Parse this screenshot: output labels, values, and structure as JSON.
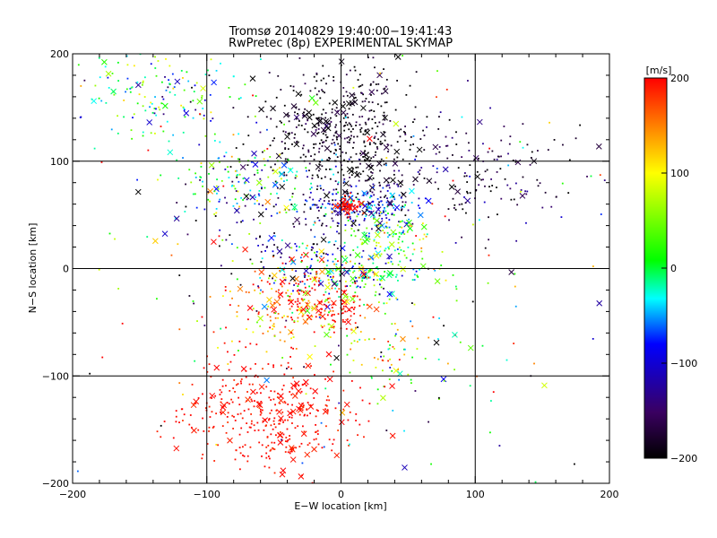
{
  "chart_data": {
    "type": "scatter",
    "title": "Tromsø 20140829 19:40:00−19:41:43",
    "subtitle": "RwPretec (8p) EXPERIMENTAL SKYMAP",
    "xlabel": "E−W location [km]",
    "ylabel": "N−S location [km]",
    "xlim": [
      -200,
      200
    ],
    "ylim": [
      -200,
      200
    ],
    "x_ticks": [
      "−200",
      "−100",
      "0",
      "100",
      "200"
    ],
    "y_ticks": [
      "−200",
      "−100",
      "0",
      "100",
      "200"
    ],
    "gridlines_x": [
      -100,
      0,
      100
    ],
    "gridlines_y": [
      -100,
      0,
      100
    ],
    "grid": true,
    "colorbar": {
      "label": "[m/s]",
      "range": [
        -200,
        200
      ],
      "ticks": [
        "200",
        "100",
        "0",
        "−100",
        "−200"
      ],
      "colors_low_to_high": [
        "#000000",
        "#3a0060",
        "#0000ff",
        "#00ffff",
        "#00ff00",
        "#ffff00",
        "#ff0000"
      ]
    },
    "markers": {
      "small": "dot",
      "large": "x"
    },
    "clusters": [
      {
        "x": 0,
        "y": 125,
        "sx": 30,
        "sy": 35,
        "n": 520,
        "v": -190,
        "vs": 20
      },
      {
        "x": 105,
        "y": 85,
        "sx": 38,
        "sy": 25,
        "n": 150,
        "v": -175,
        "vs": 30
      },
      {
        "x": -135,
        "y": 165,
        "sx": 30,
        "sy": 22,
        "n": 160,
        "v": -5,
        "vs": 70
      },
      {
        "x": -65,
        "y": 80,
        "sx": 30,
        "sy": 18,
        "n": 150,
        "v": 0,
        "vs": 80
      },
      {
        "x": 18,
        "y": 58,
        "sx": 18,
        "sy": 10,
        "n": 200,
        "v": -95,
        "vs": 50
      },
      {
        "x": 5,
        "y": 60,
        "sx": 5,
        "sy": 4,
        "n": 60,
        "v": 195,
        "vs": 5
      },
      {
        "x": 35,
        "y": 30,
        "sx": 18,
        "sy": 12,
        "n": 110,
        "v": 20,
        "vs": 60
      },
      {
        "x": 10,
        "y": -5,
        "sx": 28,
        "sy": 12,
        "n": 200,
        "v": 0,
        "vs": 70
      },
      {
        "x": -35,
        "y": -30,
        "sx": 22,
        "sy": 22,
        "n": 220,
        "v": 160,
        "vs": 60
      },
      {
        "x": -5,
        "y": -40,
        "sx": 12,
        "sy": 8,
        "n": 70,
        "v": 195,
        "vs": 5
      },
      {
        "x": -55,
        "y": -135,
        "sx": 32,
        "sy": 25,
        "n": 380,
        "v": 195,
        "vs": 8
      },
      {
        "x": -45,
        "y": 40,
        "sx": 40,
        "sy": 30,
        "n": 140,
        "v": -150,
        "vs": 60
      },
      {
        "x": 30,
        "y": -80,
        "sx": 30,
        "sy": 30,
        "n": 90,
        "v": 80,
        "vs": 80
      },
      {
        "x": 0,
        "y": 0,
        "sx": 110,
        "sy": 110,
        "n": 260,
        "v": 0,
        "vs": 150
      }
    ]
  }
}
